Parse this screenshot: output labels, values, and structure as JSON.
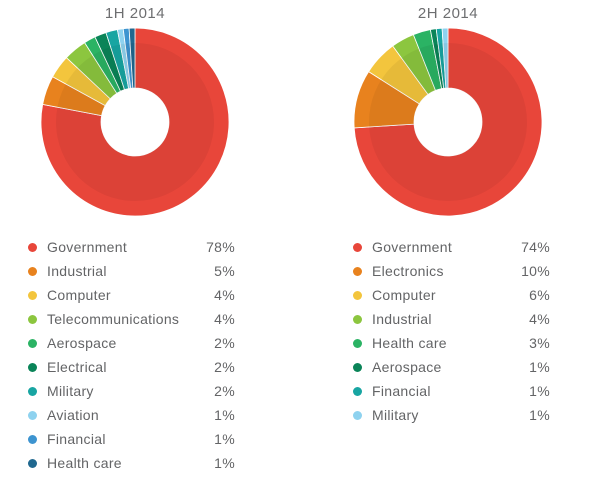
{
  "styles": {
    "background": "#ffffff",
    "title_color": "#6d6e70",
    "text_color": "#636466"
  },
  "chart_data": [
    {
      "type": "pie",
      "donut": true,
      "title": "1H 2014",
      "start_angle": 0,
      "direction": "clockwise",
      "legend_position": "bottom",
      "categories": [
        "Government",
        "Industrial",
        "Computer",
        "Telecommunications",
        "Aerospace",
        "Electrical",
        "Military",
        "Aviation",
        "Financial",
        "Health care"
      ],
      "values": [
        78,
        5,
        4,
        4,
        2,
        2,
        2,
        1,
        1,
        1
      ],
      "value_labels": [
        "78%",
        "5%",
        "4%",
        "4%",
        "2%",
        "2%",
        "2%",
        "1%",
        "1%",
        "1%"
      ],
      "colors": [
        "#e8463a",
        "#e8821e",
        "#f3c53d",
        "#8cc63f",
        "#2bb364",
        "#0a8458",
        "#18a5a2",
        "#8ed2ef",
        "#3d94d0",
        "#20688f"
      ]
    },
    {
      "type": "pie",
      "donut": true,
      "title": "2H 2014",
      "start_angle": 0,
      "direction": "clockwise",
      "legend_position": "bottom",
      "categories": [
        "Government",
        "Electronics",
        "Computer",
        "Industrial",
        "Health care",
        "Aerospace",
        "Financial",
        "Military"
      ],
      "values": [
        74,
        10,
        6,
        4,
        3,
        1,
        1,
        1
      ],
      "value_labels": [
        "74%",
        "10%",
        "6%",
        "4%",
        "3%",
        "1%",
        "1%",
        "1%"
      ],
      "colors": [
        "#e8463a",
        "#e8821e",
        "#f3c53d",
        "#8cc63f",
        "#2bb364",
        "#0a8458",
        "#18a5a2",
        "#8ed2ef"
      ]
    }
  ]
}
